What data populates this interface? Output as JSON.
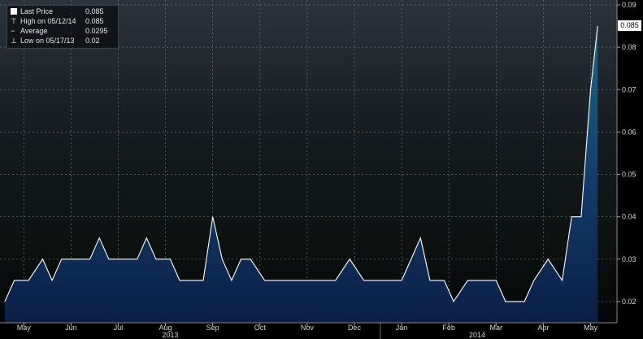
{
  "legend": {
    "last_price_label": "Last Price",
    "last_price_value": "0.085",
    "high_label": "High on 05/12/14",
    "high_value": "0.085",
    "average_label": "Average",
    "average_value": "0.0295",
    "low_label": "Low on 05/17/13",
    "low_value": "0.02"
  },
  "last_value_tag": "0.085",
  "chart_data": {
    "type": "area",
    "title": "",
    "xlabel": "",
    "ylabel": "",
    "ylim": [
      0.015,
      0.09
    ],
    "y_ticks": [
      0.02,
      0.03,
      0.04,
      0.05,
      0.06,
      0.07,
      0.08,
      0.09
    ],
    "y_tick_labels": [
      "0.02",
      "0.03",
      "0.04",
      "0.05",
      "0.06",
      "0.07",
      "0.08",
      "0.09"
    ],
    "x_ticks": [
      {
        "label": "May",
        "x": 0.4
      },
      {
        "label": "Jun",
        "x": 1.4
      },
      {
        "label": "Jul",
        "x": 2.4
      },
      {
        "label": "Aug",
        "x": 3.4
      },
      {
        "label": "Sep",
        "x": 4.4
      },
      {
        "label": "Oct",
        "x": 5.4
      },
      {
        "label": "Nov",
        "x": 6.4
      },
      {
        "label": "Dec",
        "x": 7.4
      },
      {
        "label": "Jan",
        "x": 8.4
      },
      {
        "label": "Feb",
        "x": 9.4
      },
      {
        "label": "Mar",
        "x": 10.4
      },
      {
        "label": "Apr",
        "x": 11.4
      },
      {
        "label": "May",
        "x": 12.4
      }
    ],
    "year_labels": [
      {
        "label": "2013",
        "x": 3.5
      },
      {
        "label": "2014",
        "x": 10.0
      }
    ],
    "xlim": [
      0.0,
      12.65
    ],
    "grid": true,
    "legend_position": "top-left",
    "line_color": "#ffffff",
    "fill_color_top": "#1a6a86",
    "fill_color_bottom": "#0b1f46",
    "series": [
      {
        "x": [
          0.0,
          0.2,
          0.5,
          0.8,
          1.0,
          1.2,
          1.5,
          1.8,
          2.0,
          2.2,
          2.5,
          2.8,
          3.0,
          3.2,
          3.5,
          3.7,
          3.9,
          4.2,
          4.4,
          4.6,
          4.8,
          5.0,
          5.2,
          5.5,
          5.8,
          6.0,
          6.3,
          6.6,
          6.9,
          7.0,
          7.3,
          7.6,
          8.0,
          8.4,
          8.8,
          9.0,
          9.3,
          9.5,
          9.8,
          10.0,
          10.4,
          10.6,
          11.0,
          11.2,
          11.5,
          11.8,
          12.0,
          12.2,
          12.4,
          12.55
        ],
        "y": [
          0.02,
          0.025,
          0.025,
          0.03,
          0.025,
          0.03,
          0.03,
          0.03,
          0.035,
          0.03,
          0.03,
          0.03,
          0.035,
          0.03,
          0.03,
          0.025,
          0.025,
          0.025,
          0.04,
          0.03,
          0.025,
          0.03,
          0.03,
          0.025,
          0.025,
          0.025,
          0.025,
          0.025,
          0.025,
          0.025,
          0.03,
          0.025,
          0.025,
          0.025,
          0.035,
          0.025,
          0.025,
          0.02,
          0.025,
          0.025,
          0.025,
          0.02,
          0.02,
          0.025,
          0.03,
          0.025,
          0.04,
          0.04,
          0.07,
          0.085
        ]
      }
    ]
  }
}
